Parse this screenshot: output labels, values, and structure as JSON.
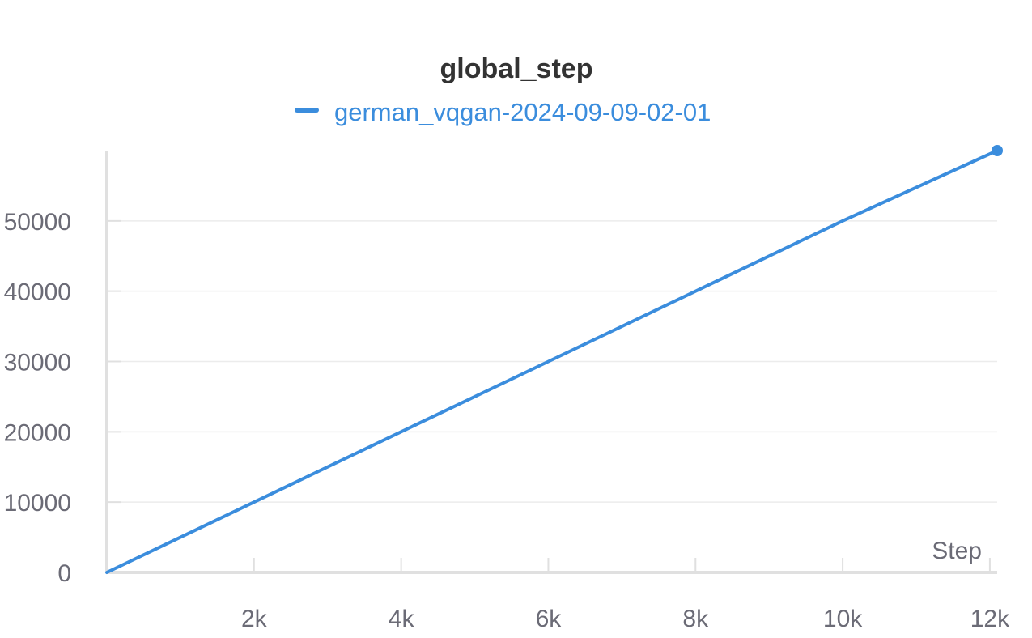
{
  "chart_data": {
    "type": "line",
    "title": "global_step",
    "xlabel": "Step",
    "ylabel": "",
    "xlim": [
      0,
      12100
    ],
    "ylim": [
      0,
      60000
    ],
    "x_ticks": [
      2000,
      4000,
      6000,
      8000,
      10000,
      12000
    ],
    "x_tick_labels": [
      "2k",
      "4k",
      "6k",
      "8k",
      "10k",
      "12k"
    ],
    "y_ticks": [
      0,
      10000,
      20000,
      30000,
      40000,
      50000
    ],
    "y_tick_labels": [
      "0",
      "10000",
      "20000",
      "30000",
      "40000",
      "50000"
    ],
    "grid": true,
    "legend_position": "top-center",
    "series": [
      {
        "name": "german_vqgan-2024-09-09-02-01",
        "color": "#3b8ddd",
        "x": [
          0,
          2000,
          4000,
          6000,
          8000,
          10000,
          12100
        ],
        "y": [
          0,
          10000,
          20000,
          30000,
          40000,
          50000,
          60000
        ]
      }
    ],
    "colors": {
      "axis": "#e0e0e0",
      "grid": "#ececec",
      "tick_text": "#6b6b76",
      "title_text": "#333333",
      "legend_text": "#3b8ddd"
    }
  }
}
